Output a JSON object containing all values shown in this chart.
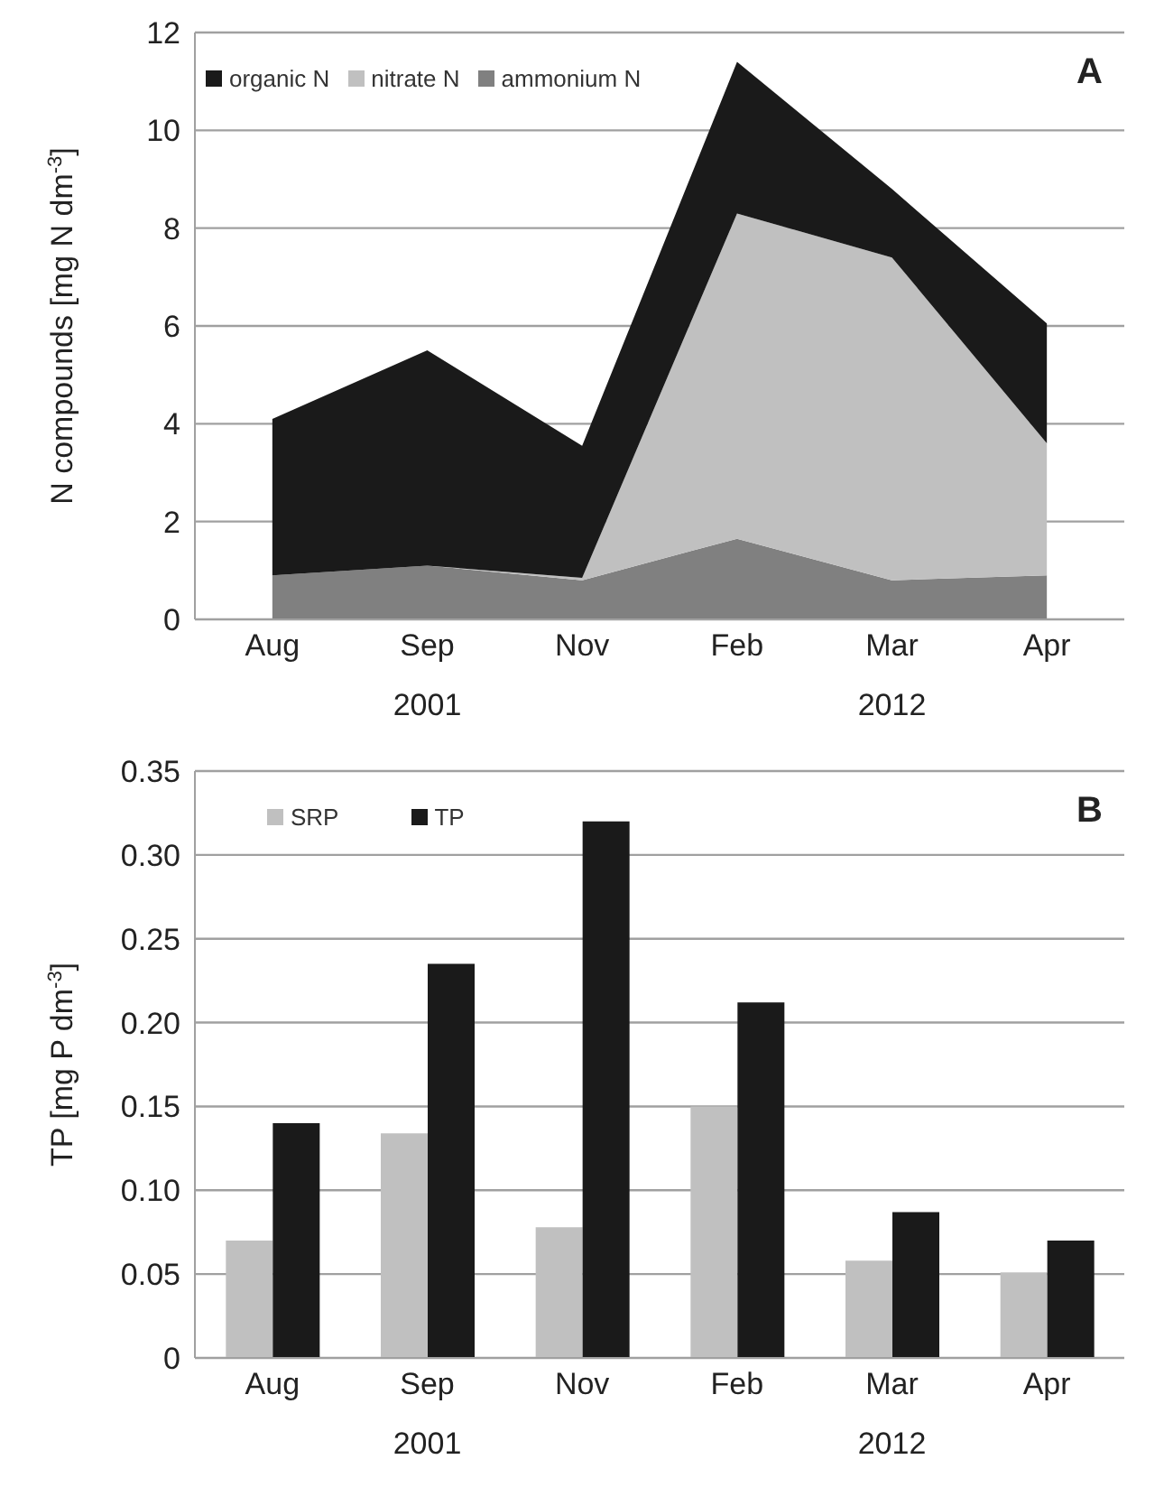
{
  "chart_data": [
    {
      "type": "area",
      "title": "A",
      "stacked": true,
      "categories": [
        "Aug",
        "Sep",
        "Nov",
        "Feb",
        "Mar",
        "Apr"
      ],
      "annotations": [
        "2001",
        "2012"
      ],
      "ylabel": "N compounds [mg N dm$^{-3}$]",
      "ylim": [
        0,
        12
      ],
      "yticks": [
        0,
        2,
        4,
        6,
        8,
        10,
        12
      ],
      "grid": "y",
      "legend": "top left",
      "series": [
        {
          "name": "ammonium N",
          "color": "#808080",
          "values": [
            0.9,
            1.1,
            0.8,
            1.65,
            0.8,
            0.9
          ]
        },
        {
          "name": "nitrate N",
          "color": "#c0c0c0",
          "values": [
            0,
            0,
            0.05,
            6.65,
            6.6,
            2.7
          ]
        },
        {
          "name": "organic N",
          "color": "#1a1a1a",
          "values": [
            3.2,
            4.4,
            2.7,
            3.1,
            1.4,
            2.45
          ]
        }
      ]
    },
    {
      "type": "bar",
      "title": "B",
      "categories": [
        "Aug",
        "Sep",
        "Nov",
        "Feb",
        "Mar",
        "Apr"
      ],
      "annotations": [
        "2001",
        "2012"
      ],
      "ylabel": "TP [mg P  dm$^{-3}$]",
      "ylim": [
        0,
        0.35
      ],
      "yticks": [
        0,
        {
          "value": 0.05,
          "label": "0.05"
        },
        {
          "value": 0.1,
          "label": "0.10"
        },
        {
          "value": 0.15,
          "label": "0.15"
        },
        {
          "value": 0.2,
          "label": "0.20"
        },
        {
          "value": 0.25,
          "label": "0.25"
        },
        {
          "value": 0.3,
          "label": "0.30"
        },
        {
          "value": 0.35,
          "label": "0.35"
        }
      ],
      "grid": "y",
      "legend": "top left",
      "series": [
        {
          "name": "SRP",
          "color": "#c0c0c0",
          "values": [
            0.07,
            0.134,
            0.078,
            0.15,
            0.058,
            0.051
          ]
        },
        {
          "name": "TP",
          "color": "#1a1a1a",
          "values": [
            0.14,
            0.235,
            0.32,
            0.212,
            0.087,
            0.07
          ]
        }
      ]
    }
  ]
}
